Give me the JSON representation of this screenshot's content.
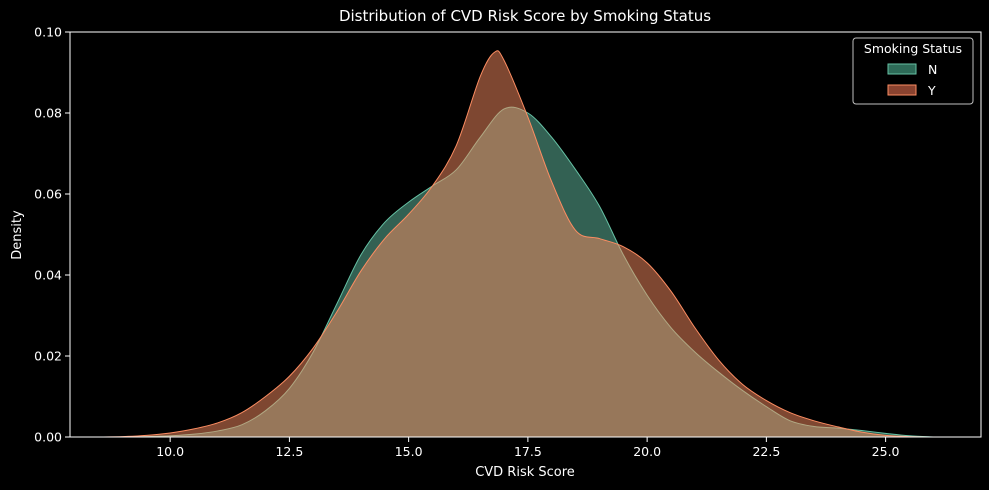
{
  "chart_data": {
    "type": "area",
    "title": "Distribution of CVD Risk Score by Smoking Status",
    "xlabel": "CVD Risk Score",
    "ylabel": "Density",
    "xlim": [
      7.9,
      27.0
    ],
    "ylim": [
      0,
      0.1
    ],
    "xticks": [
      10.0,
      12.5,
      15.0,
      17.5,
      20.0,
      22.5,
      25.0
    ],
    "xtick_labels": [
      "10.0",
      "12.5",
      "15.0",
      "17.5",
      "20.0",
      "22.5",
      "25.0"
    ],
    "yticks": [
      0.0,
      0.02,
      0.04,
      0.06,
      0.08,
      0.1
    ],
    "ytick_labels": [
      "0.00",
      "0.02",
      "0.04",
      "0.06",
      "0.08",
      "0.10"
    ],
    "grid": false,
    "legend": {
      "title": "Smoking Status",
      "placement": "top-right"
    },
    "series": [
      {
        "name": "N",
        "color": "#66c2a5",
        "fill": "#2e6b58",
        "points": [
          [
            9.0,
            0.0
          ],
          [
            9.5,
            0.0001
          ],
          [
            10.0,
            0.0003
          ],
          [
            10.5,
            0.0007
          ],
          [
            11.0,
            0.0015
          ],
          [
            11.5,
            0.003
          ],
          [
            12.0,
            0.0065
          ],
          [
            12.5,
            0.012
          ],
          [
            13.0,
            0.021
          ],
          [
            13.5,
            0.033
          ],
          [
            14.0,
            0.045
          ],
          [
            14.5,
            0.053
          ],
          [
            15.0,
            0.058
          ],
          [
            15.5,
            0.062
          ],
          [
            16.0,
            0.066
          ],
          [
            16.5,
            0.074
          ],
          [
            17.0,
            0.081
          ],
          [
            17.5,
            0.08
          ],
          [
            18.0,
            0.074
          ],
          [
            18.5,
            0.066
          ],
          [
            19.0,
            0.057
          ],
          [
            19.5,
            0.045
          ],
          [
            20.0,
            0.035
          ],
          [
            20.5,
            0.027
          ],
          [
            21.0,
            0.021
          ],
          [
            21.5,
            0.016
          ],
          [
            22.0,
            0.0115
          ],
          [
            22.5,
            0.0075
          ],
          [
            23.0,
            0.004
          ],
          [
            23.5,
            0.0026
          ],
          [
            24.0,
            0.0022
          ],
          [
            24.5,
            0.0016
          ],
          [
            25.0,
            0.0009
          ],
          [
            25.5,
            0.0003
          ],
          [
            26.0,
            0.0
          ]
        ]
      },
      {
        "name": "Y",
        "color": "#fc8d62",
        "fill": "#8a4330",
        "points": [
          [
            8.5,
            0.0
          ],
          [
            9.0,
            0.0001
          ],
          [
            9.5,
            0.0004
          ],
          [
            10.0,
            0.001
          ],
          [
            10.5,
            0.002
          ],
          [
            11.0,
            0.0035
          ],
          [
            11.5,
            0.006
          ],
          [
            12.0,
            0.01
          ],
          [
            12.5,
            0.015
          ],
          [
            13.0,
            0.022
          ],
          [
            13.5,
            0.031
          ],
          [
            14.0,
            0.041
          ],
          [
            14.5,
            0.049
          ],
          [
            15.0,
            0.055
          ],
          [
            15.5,
            0.062
          ],
          [
            16.0,
            0.072
          ],
          [
            16.5,
            0.089
          ],
          [
            16.8,
            0.095
          ],
          [
            17.0,
            0.093
          ],
          [
            17.5,
            0.079
          ],
          [
            18.0,
            0.063
          ],
          [
            18.5,
            0.051
          ],
          [
            19.0,
            0.049
          ],
          [
            19.5,
            0.047
          ],
          [
            20.0,
            0.043
          ],
          [
            20.5,
            0.036
          ],
          [
            21.0,
            0.027
          ],
          [
            21.5,
            0.019
          ],
          [
            22.0,
            0.013
          ],
          [
            22.5,
            0.009
          ],
          [
            23.0,
            0.006
          ],
          [
            23.5,
            0.004
          ],
          [
            24.0,
            0.0025
          ],
          [
            24.5,
            0.0012
          ],
          [
            25.0,
            0.0004
          ],
          [
            25.5,
            0.0001
          ],
          [
            26.0,
            0.0
          ]
        ]
      }
    ]
  }
}
